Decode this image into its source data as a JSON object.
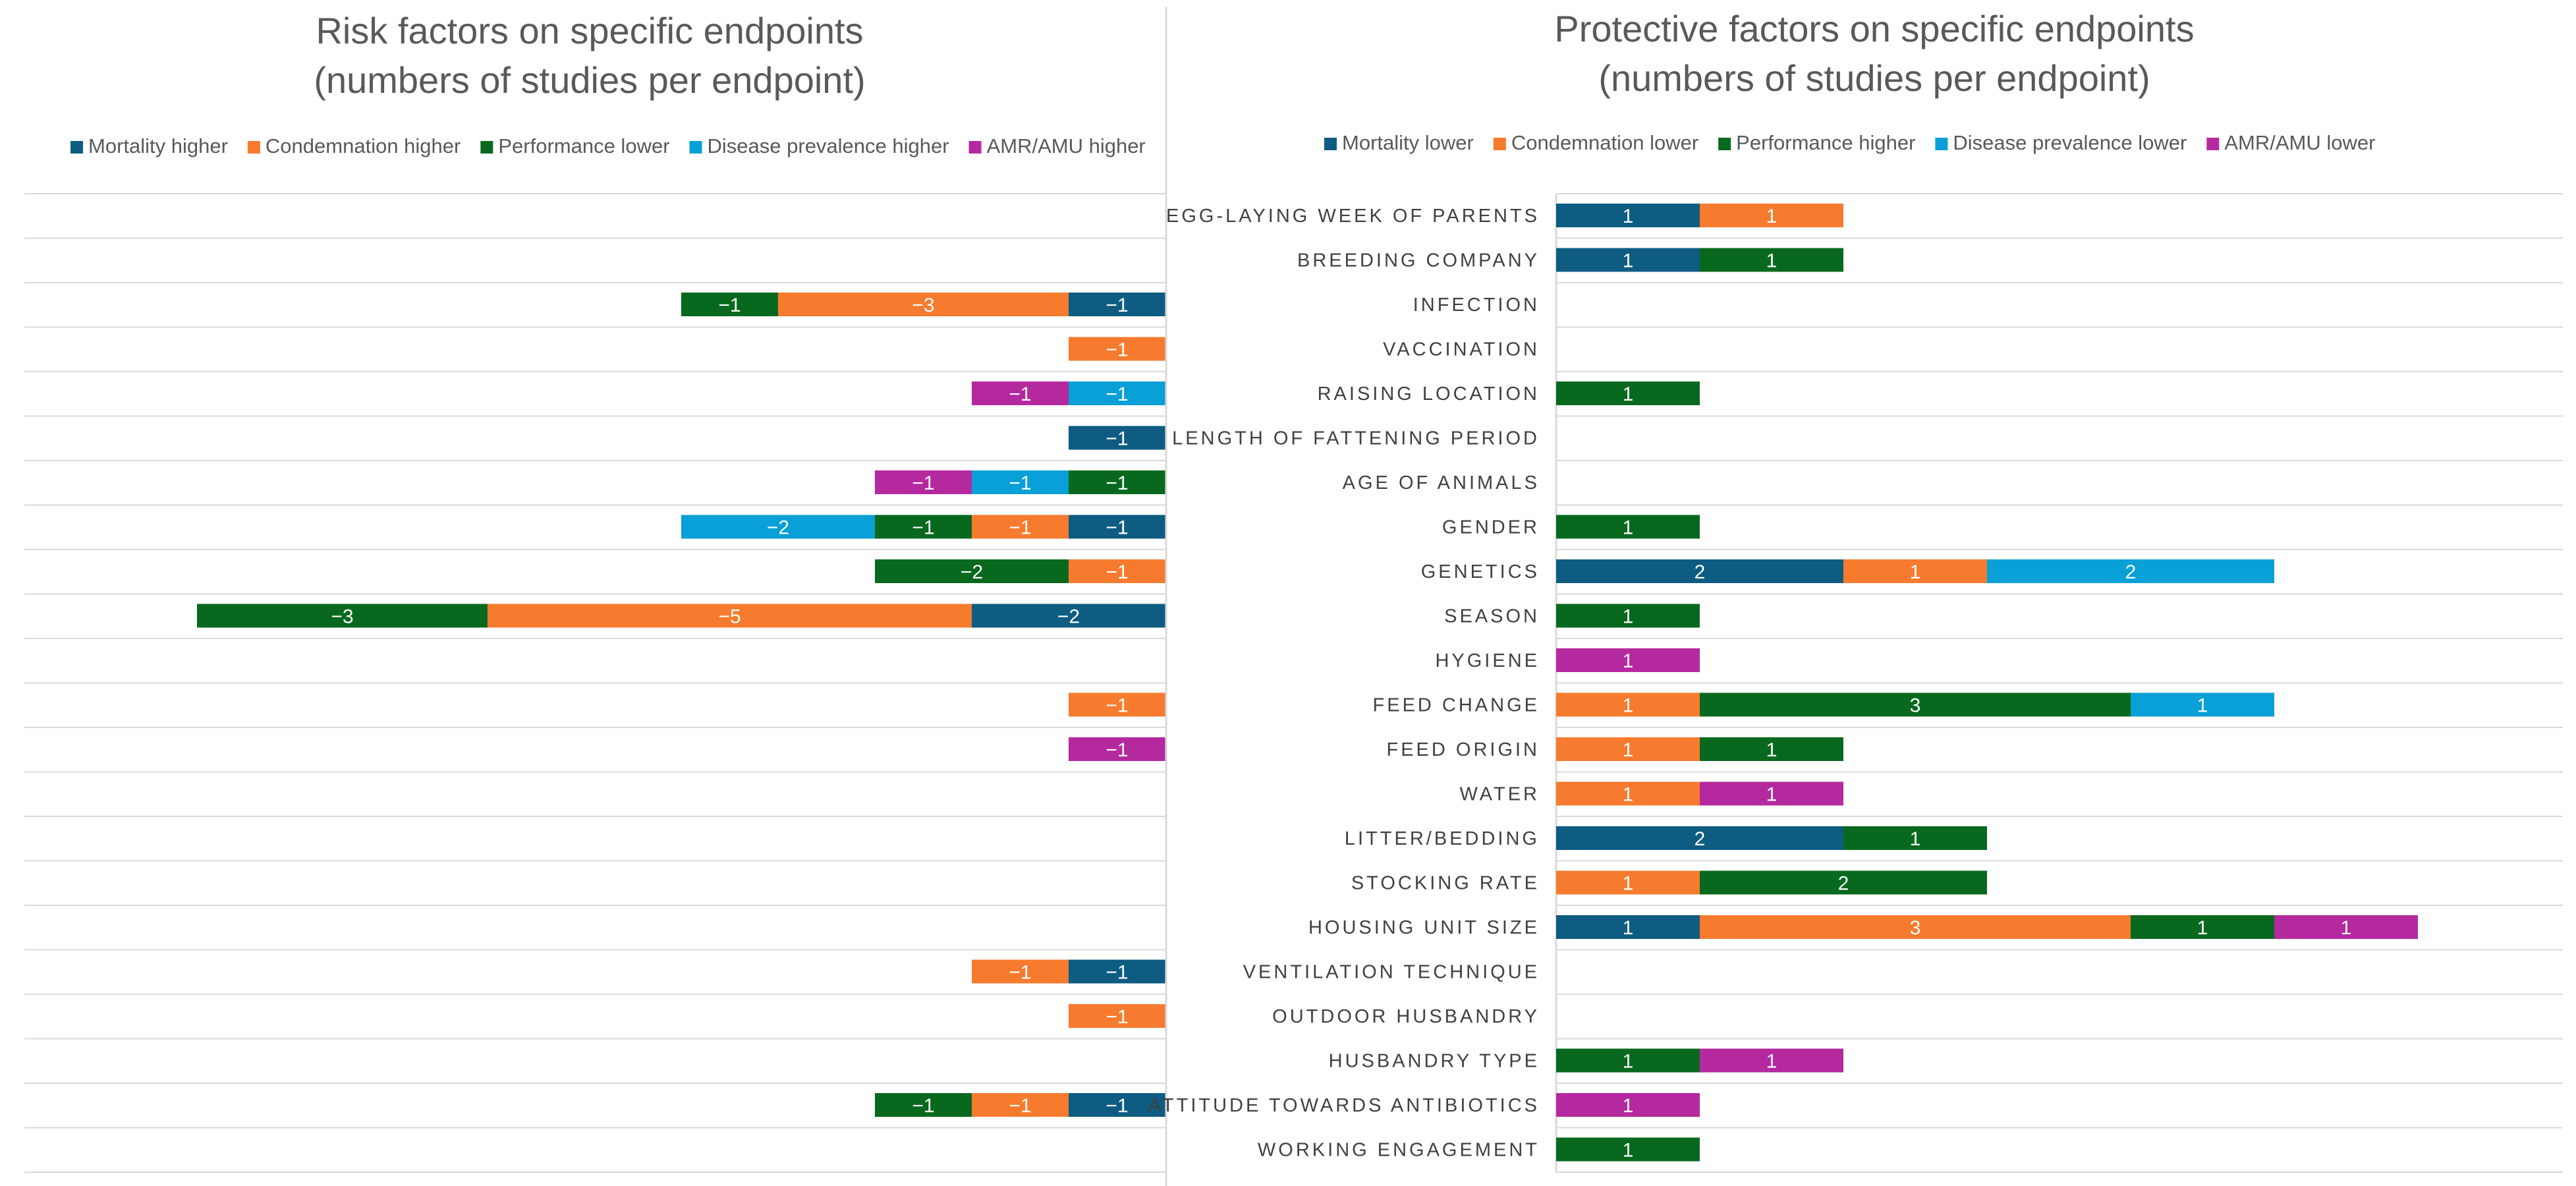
{
  "chart_data": [
    {
      "type": "bar",
      "orientation": "horizontal",
      "stacked": true,
      "title": "Risk factors on specific endpoints\n(numbers of studies per endpoint)",
      "legend_position": "top",
      "categories": [
        "EGG-LAYING WEEK OF PARENTS",
        "BREEDING COMPANY",
        "INFECTION",
        "VACCINATION",
        "RAISING LOCATION",
        "LENGTH OF FATTENING PERIOD",
        "AGE OF ANIMALS",
        "GENDER",
        "GENETICS",
        "SEASON",
        "HYGIENE",
        "FEED CHANGE",
        "FEED ORIGIN",
        "WATER",
        "LITTER/BEDDING",
        "STOCKING RATE",
        "HOUSING UNIT SIZE",
        "VENTILATION TECHNIQUE",
        "OUTDOOR HUSBANDRY",
        "HUSBANDRY TYPE",
        "ATTITUDE TOWARDS ANTIBIOTICS",
        "WORKING ENGAGEMENT"
      ],
      "series": [
        {
          "name": "Mortality higher",
          "color": "#0E5C82",
          "values": [
            0,
            0,
            -1,
            0,
            0,
            -1,
            0,
            -1,
            0,
            -2,
            0,
            0,
            0,
            0,
            0,
            0,
            0,
            -1,
            0,
            0,
            -1,
            0
          ]
        },
        {
          "name": "Condemnation higher",
          "color": "#F77B2E",
          "values": [
            0,
            0,
            -3,
            -1,
            0,
            0,
            0,
            -1,
            -1,
            -5,
            0,
            -1,
            0,
            0,
            0,
            0,
            0,
            -1,
            -1,
            0,
            -1,
            0
          ]
        },
        {
          "name": "Performance lower",
          "color": "#08691E",
          "values": [
            0,
            0,
            -1,
            0,
            0,
            0,
            -1,
            -1,
            -2,
            -3,
            0,
            0,
            0,
            0,
            0,
            0,
            0,
            0,
            0,
            0,
            -1,
            0
          ]
        },
        {
          "name": "Disease prevalence higher",
          "color": "#08A0D6",
          "values": [
            0,
            0,
            0,
            0,
            -1,
            0,
            -1,
            -2,
            0,
            0,
            0,
            0,
            0,
            0,
            0,
            0,
            0,
            0,
            0,
            0,
            0,
            0
          ]
        },
        {
          "name": "AMR/AMU higher",
          "color": "#B5299F",
          "values": [
            0,
            0,
            0,
            0,
            -1,
            0,
            -1,
            0,
            0,
            0,
            0,
            0,
            -1,
            0,
            0,
            0,
            0,
            0,
            0,
            0,
            0,
            0
          ]
        }
      ],
      "gridlines": true
    },
    {
      "type": "bar",
      "orientation": "horizontal",
      "stacked": true,
      "title": "Protective factors on specific endpoints\n(numbers of studies per endpoint)",
      "legend_position": "top",
      "categories": [
        "EGG-LAYING WEEK OF PARENTS",
        "BREEDING COMPANY",
        "INFECTION",
        "VACCINATION",
        "RAISING LOCATION",
        "LENGTH OF FATTENING PERIOD",
        "AGE OF ANIMALS",
        "GENDER",
        "GENETICS",
        "SEASON",
        "HYGIENE",
        "FEED CHANGE",
        "FEED ORIGIN",
        "WATER",
        "LITTER/BEDDING",
        "STOCKING RATE",
        "HOUSING UNIT SIZE",
        "VENTILATION TECHNIQUE",
        "OUTDOOR HUSBANDRY",
        "HUSBANDRY TYPE",
        "ATTITUDE TOWARDS ANTIBIOTICS",
        "WORKING ENGAGEMENT"
      ],
      "series": [
        {
          "name": "Mortality lower",
          "color": "#0E5C82",
          "values": [
            1,
            1,
            0,
            0,
            0,
            0,
            0,
            0,
            2,
            0,
            0,
            0,
            0,
            0,
            2,
            0,
            1,
            0,
            0,
            0,
            0,
            0
          ]
        },
        {
          "name": "Condemnation lower",
          "color": "#F77B2E",
          "values": [
            1,
            0,
            0,
            0,
            0,
            0,
            0,
            0,
            1,
            0,
            0,
            1,
            1,
            1,
            0,
            1,
            3,
            0,
            0,
            0,
            0,
            0
          ]
        },
        {
          "name": "Performance higher",
          "color": "#08691E",
          "values": [
            0,
            1,
            0,
            0,
            1,
            0,
            0,
            1,
            0,
            1,
            0,
            3,
            1,
            0,
            1,
            2,
            1,
            0,
            0,
            1,
            0,
            1
          ]
        },
        {
          "name": "Disease prevalence lower",
          "color": "#08A0D6",
          "values": [
            0,
            0,
            0,
            0,
            0,
            0,
            0,
            0,
            2,
            0,
            0,
            1,
            0,
            0,
            0,
            0,
            0,
            0,
            0,
            0,
            0,
            0
          ]
        },
        {
          "name": "AMR/AMU lower",
          "color": "#B5299F",
          "values": [
            0,
            0,
            0,
            0,
            0,
            0,
            0,
            0,
            0,
            0,
            1,
            0,
            0,
            1,
            0,
            0,
            1,
            0,
            0,
            1,
            1,
            0
          ]
        }
      ],
      "gridlines": true
    }
  ]
}
